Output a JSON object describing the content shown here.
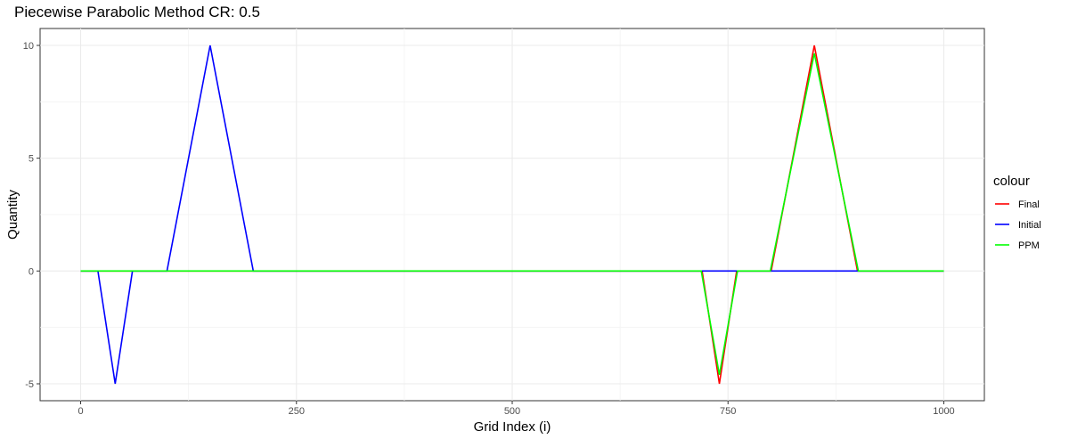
{
  "chart_data": {
    "type": "line",
    "title": "Piecewise Parabolic Method  CR: 0.5",
    "xlabel": "Grid Index (i)",
    "ylabel": "Quantity",
    "xlim": [
      -47,
      1047
    ],
    "ylim": [
      -5.75,
      10.75
    ],
    "x_ticks": [
      0,
      250,
      500,
      750,
      1000
    ],
    "x_tick_labels": [
      "0",
      "250",
      "500",
      "750",
      "1000"
    ],
    "x_minor_ticks": [
      125,
      375,
      625,
      875
    ],
    "y_ticks": [
      -5,
      0,
      5,
      10
    ],
    "y_tick_labels": [
      "-5",
      "0",
      "5",
      "10"
    ],
    "y_minor_ticks": [
      -2.5,
      2.5,
      7.5
    ],
    "grid": true,
    "legend": {
      "title": "colour",
      "position": "right",
      "entries": [
        "Final",
        "Initial",
        "PPM"
      ]
    },
    "series": [
      {
        "name": "Final",
        "color": "#FF0000",
        "points": [
          [
            0,
            0
          ],
          [
            720,
            0
          ],
          [
            740,
            -5
          ],
          [
            760,
            0
          ],
          [
            800,
            0
          ],
          [
            850,
            10
          ],
          [
            900,
            0
          ],
          [
            1000,
            0
          ]
        ]
      },
      {
        "name": "Initial",
        "color": "#0000FF",
        "points": [
          [
            0,
            0
          ],
          [
            20,
            0
          ],
          [
            40,
            -5
          ],
          [
            60,
            0
          ],
          [
            100,
            0
          ],
          [
            150,
            10
          ],
          [
            200,
            0
          ],
          [
            1000,
            0
          ]
        ]
      },
      {
        "name": "PPM",
        "color": "#00FF00",
        "points": [
          [
            0,
            0
          ],
          [
            719,
            0
          ],
          [
            740,
            -4.6
          ],
          [
            761,
            0
          ],
          [
            799,
            0
          ],
          [
            850,
            9.65
          ],
          [
            901,
            0
          ],
          [
            1000,
            0
          ]
        ]
      }
    ]
  }
}
